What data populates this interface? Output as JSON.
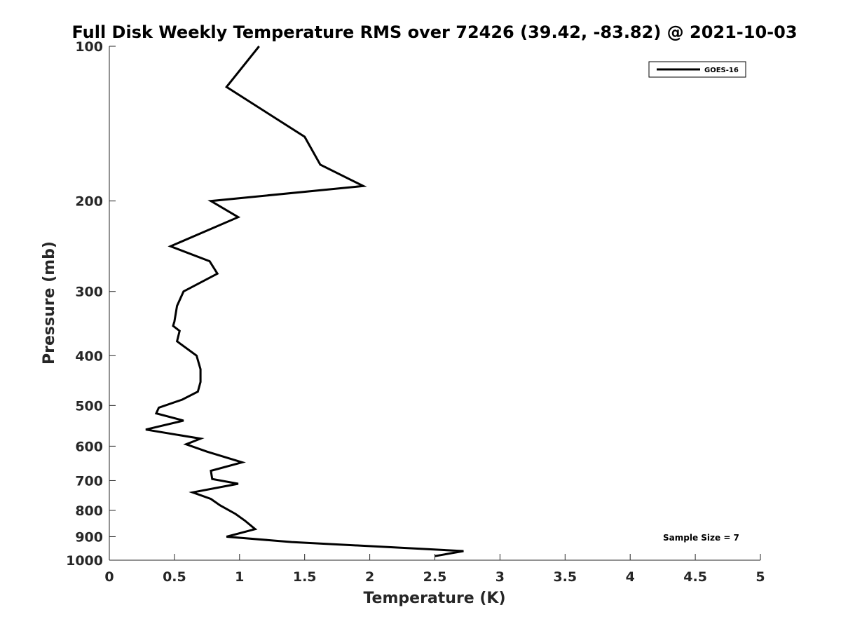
{
  "chart_data": {
    "type": "line",
    "title": "Full Disk Weekly Temperature RMS over 72426 (39.42, -83.82) @ 2021-10-03",
    "xlabel": "Temperature (K)",
    "ylabel": "Pressure (mb)",
    "xlim": [
      0,
      5
    ],
    "ylim": [
      100,
      1000
    ],
    "yscale": "log",
    "y_reversed": true,
    "x_ticks": [
      "0",
      "0.5",
      "1",
      "1.5",
      "2",
      "2.5",
      "3",
      "3.5",
      "4",
      "4.5",
      "5"
    ],
    "x_tick_values": [
      0,
      0.5,
      1,
      1.5,
      2,
      2.5,
      3,
      3.5,
      4,
      4.5,
      5
    ],
    "y_ticks": [
      "100",
      "200",
      "300",
      "400",
      "500",
      "600",
      "700",
      "800",
      "900",
      "1000"
    ],
    "y_tick_values": [
      100,
      200,
      300,
      400,
      500,
      600,
      700,
      800,
      900,
      1000
    ],
    "grid": false,
    "legend": {
      "placement": "top-right",
      "entries": [
        "GOES-16"
      ]
    },
    "annotation": "Sample Size = 7",
    "series": [
      {
        "name": "GOES-16",
        "color": "#000000",
        "x": [
          1.15,
          0.9,
          1.5,
          1.62,
          1.95,
          0.78,
          0.99,
          0.47,
          0.77,
          0.83,
          0.57,
          0.52,
          0.5,
          0.49,
          0.54,
          0.52,
          0.67,
          0.7,
          0.7,
          0.68,
          0.56,
          0.38,
          0.36,
          0.57,
          0.28,
          0.7,
          0.59,
          0.75,
          1.02,
          0.78,
          0.79,
          0.99,
          0.64,
          0.78,
          0.85,
          0.97,
          1.04,
          1.12,
          0.9,
          1.4,
          2.72,
          2.5
        ],
        "y": [
          100,
          120,
          150,
          170,
          187,
          200,
          215,
          245,
          262,
          277,
          300,
          320,
          343,
          350,
          358,
          375,
          400,
          425,
          450,
          470,
          487,
          505,
          518,
          535,
          557,
          580,
          595,
          615,
          645,
          670,
          695,
          710,
          738,
          760,
          782,
          813,
          837,
          870,
          900,
          922,
          960,
          982
        ]
      }
    ]
  }
}
